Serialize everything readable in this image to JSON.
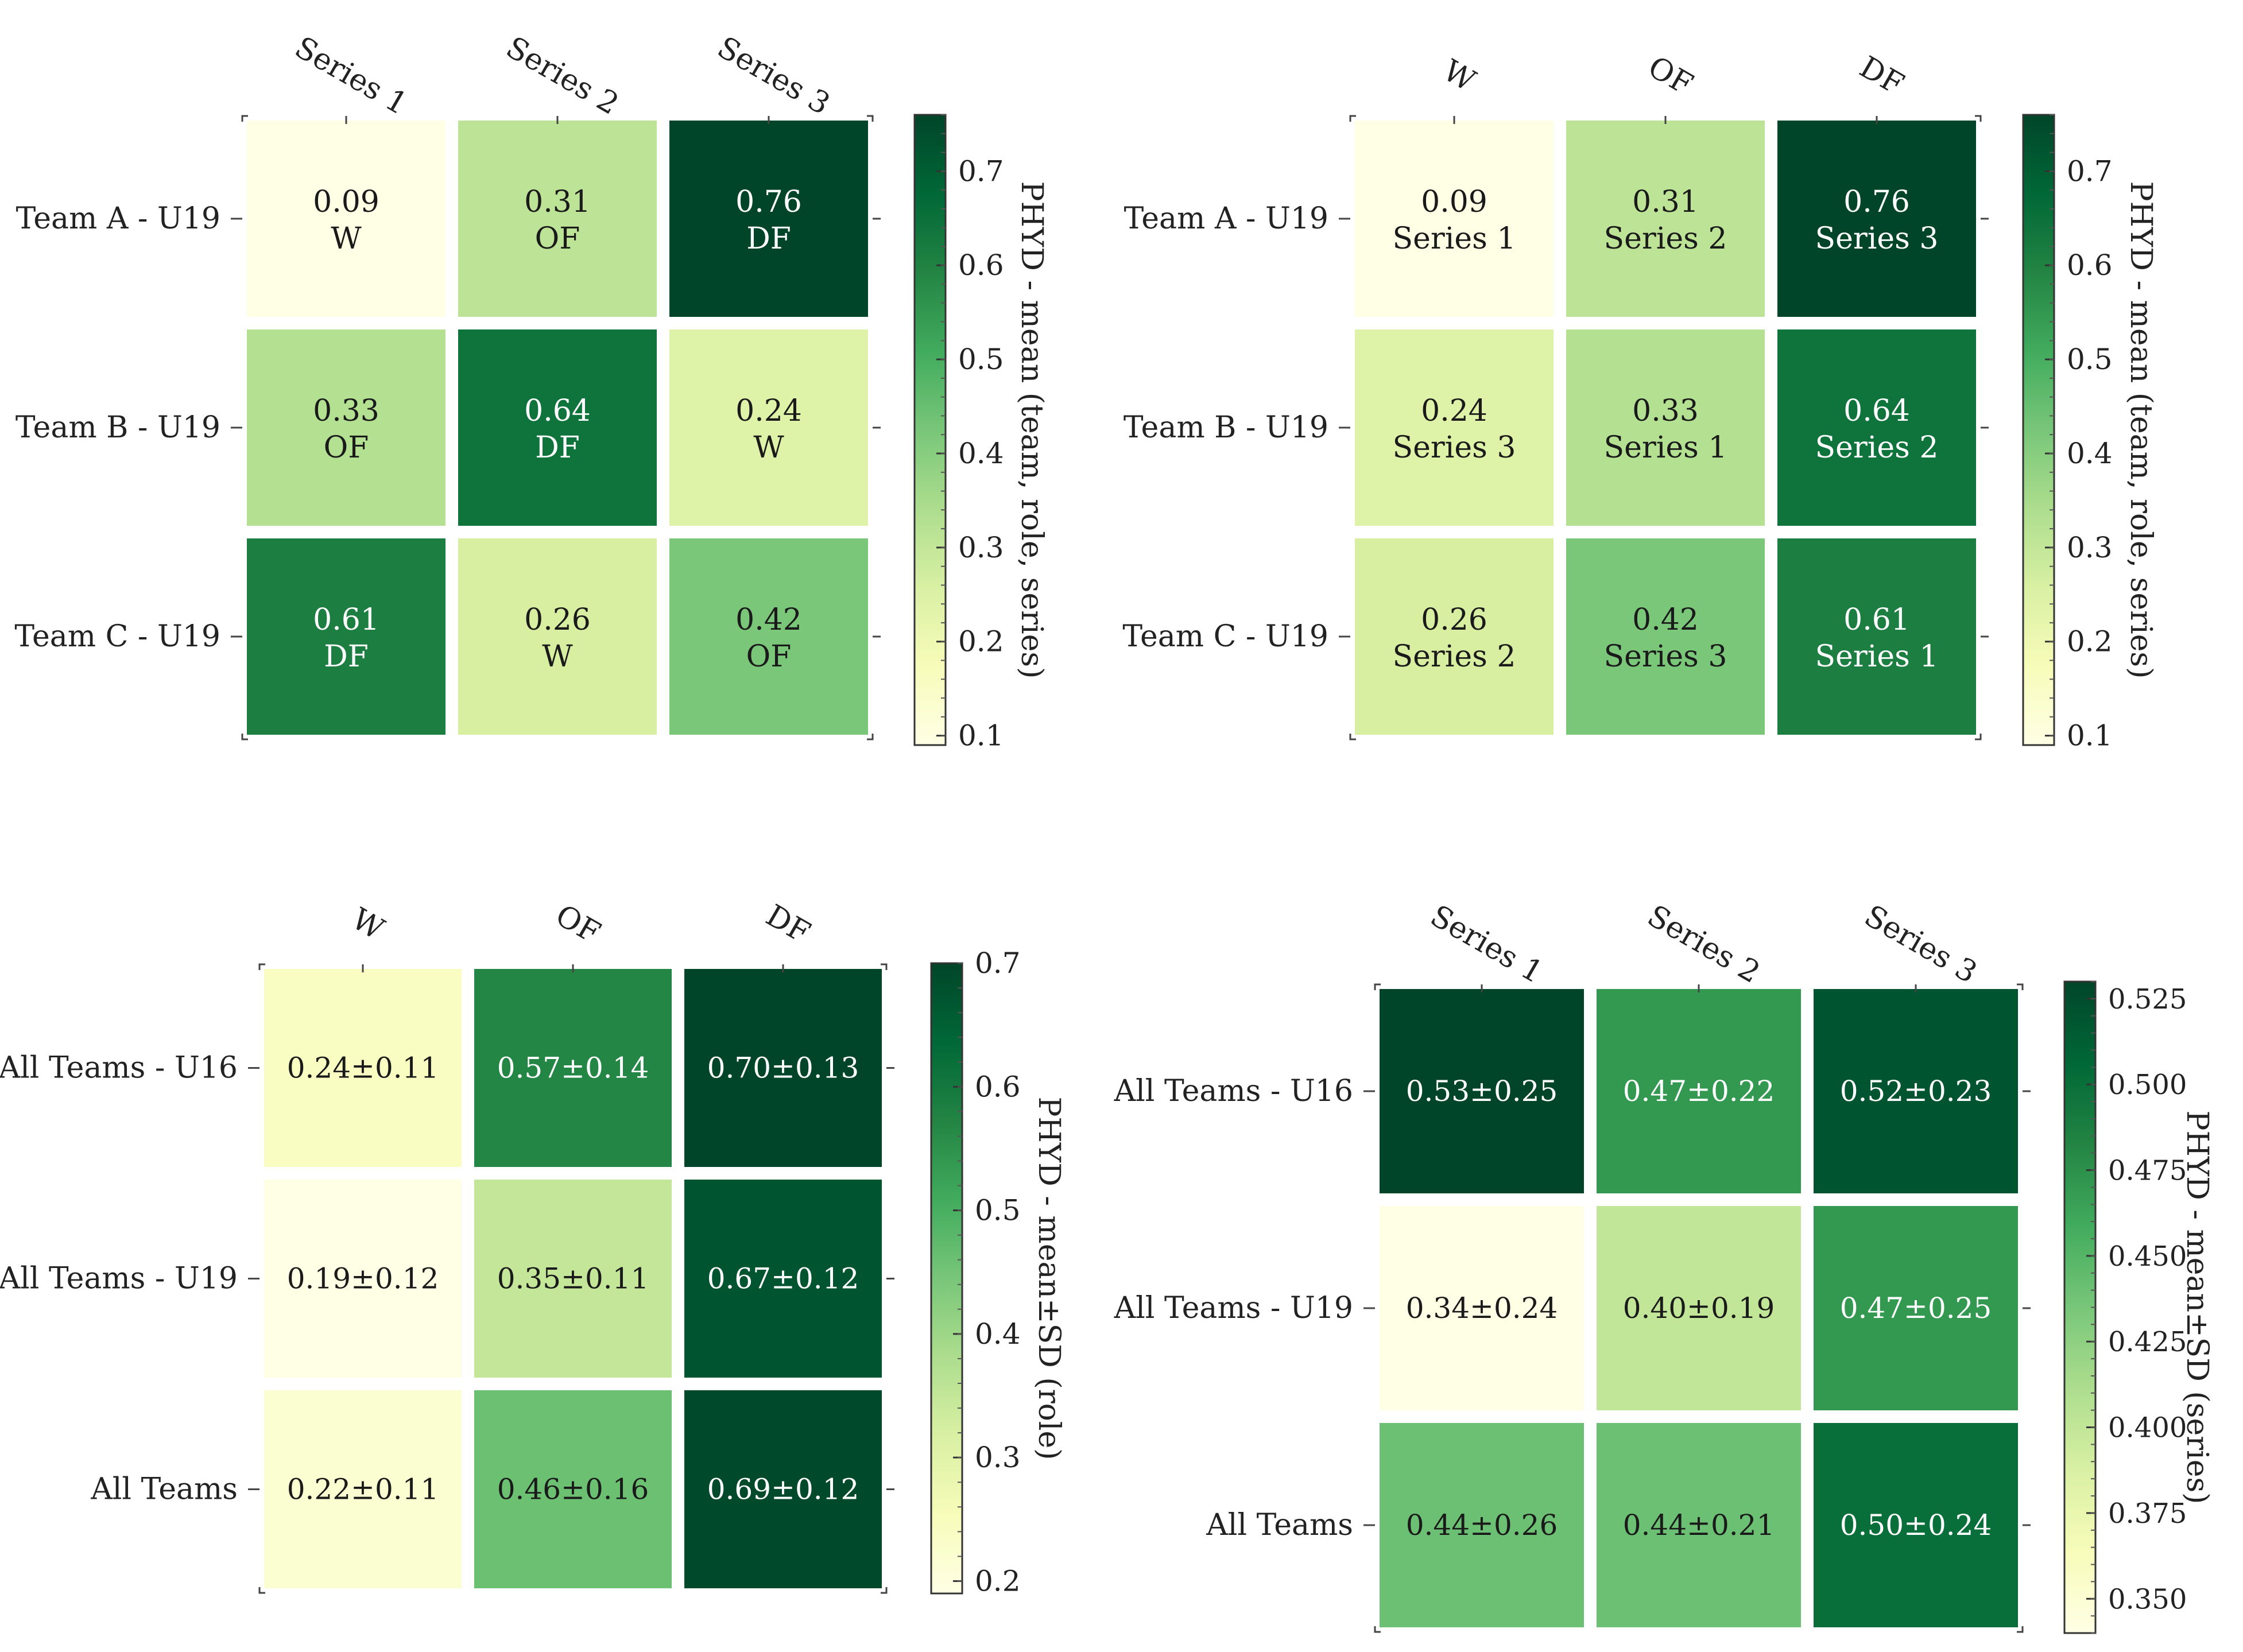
{
  "chart_data": [
    {
      "type": "heatmap",
      "id": "top-left",
      "col_labels": [
        "Series 1",
        "Series 2",
        "Series 3"
      ],
      "row_labels": [
        "Team A - U19",
        "Team B - U19",
        "Team C - U19"
      ],
      "values": [
        [
          0.09,
          0.31,
          0.76
        ],
        [
          0.33,
          0.64,
          0.24
        ],
        [
          0.61,
          0.26,
          0.42
        ]
      ],
      "cell_text": [
        [
          "0.09",
          "0.31",
          "0.76"
        ],
        [
          "0.33",
          "0.64",
          "0.24"
        ],
        [
          "0.61",
          "0.26",
          "0.42"
        ]
      ],
      "cell_sub": [
        [
          "W",
          "OF",
          "DF"
        ],
        [
          "OF",
          "DF",
          "W"
        ],
        [
          "DF",
          "W",
          "OF"
        ]
      ],
      "vmin": 0.09,
      "vmax": 0.76,
      "colorbar": {
        "label": "PHYD - mean (team, role, series)",
        "ticks": [
          0.1,
          0.2,
          0.3,
          0.4,
          0.5,
          0.6,
          0.7
        ],
        "tick_labels": [
          "0.1",
          "0.2",
          "0.3",
          "0.4",
          "0.5",
          "0.6",
          "0.7"
        ]
      }
    },
    {
      "type": "heatmap",
      "id": "top-right",
      "col_labels": [
        "W",
        "OF",
        "DF"
      ],
      "row_labels": [
        "Team A - U19",
        "Team B - U19",
        "Team C - U19"
      ],
      "values": [
        [
          0.09,
          0.31,
          0.76
        ],
        [
          0.24,
          0.33,
          0.64
        ],
        [
          0.26,
          0.42,
          0.61
        ]
      ],
      "cell_text": [
        [
          "0.09",
          "0.31",
          "0.76"
        ],
        [
          "0.24",
          "0.33",
          "0.64"
        ],
        [
          "0.26",
          "0.42",
          "0.61"
        ]
      ],
      "cell_sub": [
        [
          "Series 1",
          "Series 2",
          "Series 3"
        ],
        [
          "Series 3",
          "Series 1",
          "Series 2"
        ],
        [
          "Series 2",
          "Series 3",
          "Series 1"
        ]
      ],
      "vmin": 0.09,
      "vmax": 0.76,
      "colorbar": {
        "label": "PHYD - mean (team, role, series)",
        "ticks": [
          0.1,
          0.2,
          0.3,
          0.4,
          0.5,
          0.6,
          0.7
        ],
        "tick_labels": [
          "0.1",
          "0.2",
          "0.3",
          "0.4",
          "0.5",
          "0.6",
          "0.7"
        ]
      }
    },
    {
      "type": "heatmap",
      "id": "bottom-left",
      "col_labels": [
        "W",
        "OF",
        "DF"
      ],
      "row_labels": [
        "All Teams - U16",
        "All Teams - U19",
        "All Teams"
      ],
      "values": [
        [
          0.24,
          0.57,
          0.7
        ],
        [
          0.19,
          0.35,
          0.67
        ],
        [
          0.22,
          0.46,
          0.69
        ]
      ],
      "cell_text": [
        [
          "0.24±0.11",
          "0.57±0.14",
          "0.70±0.13"
        ],
        [
          "0.19±0.12",
          "0.35±0.11",
          "0.67±0.12"
        ],
        [
          "0.22±0.11",
          "0.46±0.16",
          "0.69±0.12"
        ]
      ],
      "vmin": 0.19,
      "vmax": 0.7,
      "colorbar": {
        "label": "PHYD - mean±SD (role)",
        "ticks": [
          0.2,
          0.3,
          0.4,
          0.5,
          0.6,
          0.7
        ],
        "tick_labels": [
          "0.2",
          "0.3",
          "0.4",
          "0.5",
          "0.6",
          "0.7"
        ]
      }
    },
    {
      "type": "heatmap",
      "id": "bottom-right",
      "col_labels": [
        "Series 1",
        "Series 2",
        "Series 3"
      ],
      "row_labels": [
        "All Teams - U16",
        "All Teams - U19",
        "All Teams"
      ],
      "values": [
        [
          0.53,
          0.47,
          0.52
        ],
        [
          0.34,
          0.4,
          0.47
        ],
        [
          0.44,
          0.44,
          0.5
        ]
      ],
      "cell_text": [
        [
          "0.53±0.25",
          "0.47±0.22",
          "0.52±0.23"
        ],
        [
          "0.34±0.24",
          "0.40±0.19",
          "0.47±0.25"
        ],
        [
          "0.44±0.26",
          "0.44±0.21",
          "0.50±0.24"
        ]
      ],
      "vmin": 0.34,
      "vmax": 0.53,
      "colorbar": {
        "label": "PHYD - mean±SD (series)",
        "ticks": [
          0.35,
          0.375,
          0.4,
          0.425,
          0.45,
          0.475,
          0.5,
          0.525
        ],
        "tick_labels": [
          "0.350",
          "0.375",
          "0.400",
          "0.425",
          "0.450",
          "0.475",
          "0.500",
          "0.525"
        ]
      }
    }
  ]
}
